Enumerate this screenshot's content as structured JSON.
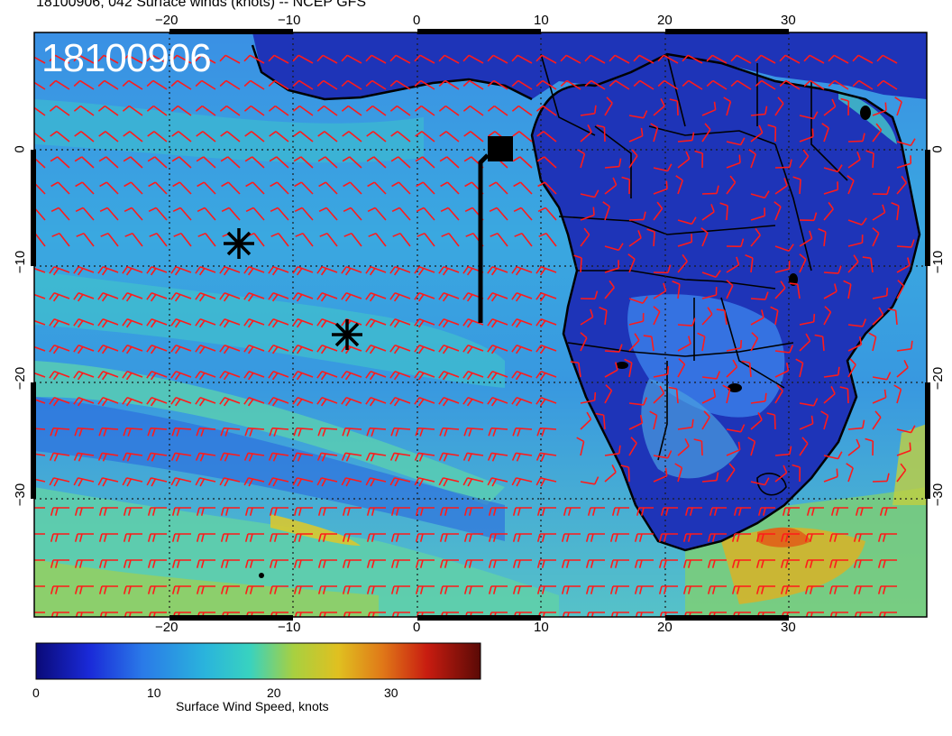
{
  "title": "18100906, 042 Surface winds (knots) -- NCEP GFS",
  "stamp": "18100906",
  "axes": {
    "lon_ticks": [
      "−20",
      "−10",
      "0",
      "10",
      "20",
      "30"
    ],
    "lat_ticks": [
      "0",
      "−10",
      "−20",
      "−30"
    ]
  },
  "colorbar": {
    "title": "Surface Wind Speed, knots",
    "ticks": [
      "0",
      "10",
      "20",
      "30"
    ],
    "colors": [
      "#0a0a78",
      "#1a2ad8",
      "#2a7ae8",
      "#2ab4dc",
      "#38d2c0",
      "#a8d040",
      "#e0c020",
      "#e07818",
      "#c81c10",
      "#5a0a06"
    ]
  },
  "colors": {
    "ocean_bg": "#3a8ae0",
    "land_bg": "#1e34b8",
    "barb": "#ff1a1a",
    "coast": "#000000"
  },
  "markers": [
    "asterisk-icon",
    "asterisk-icon",
    "square-icon"
  ]
}
